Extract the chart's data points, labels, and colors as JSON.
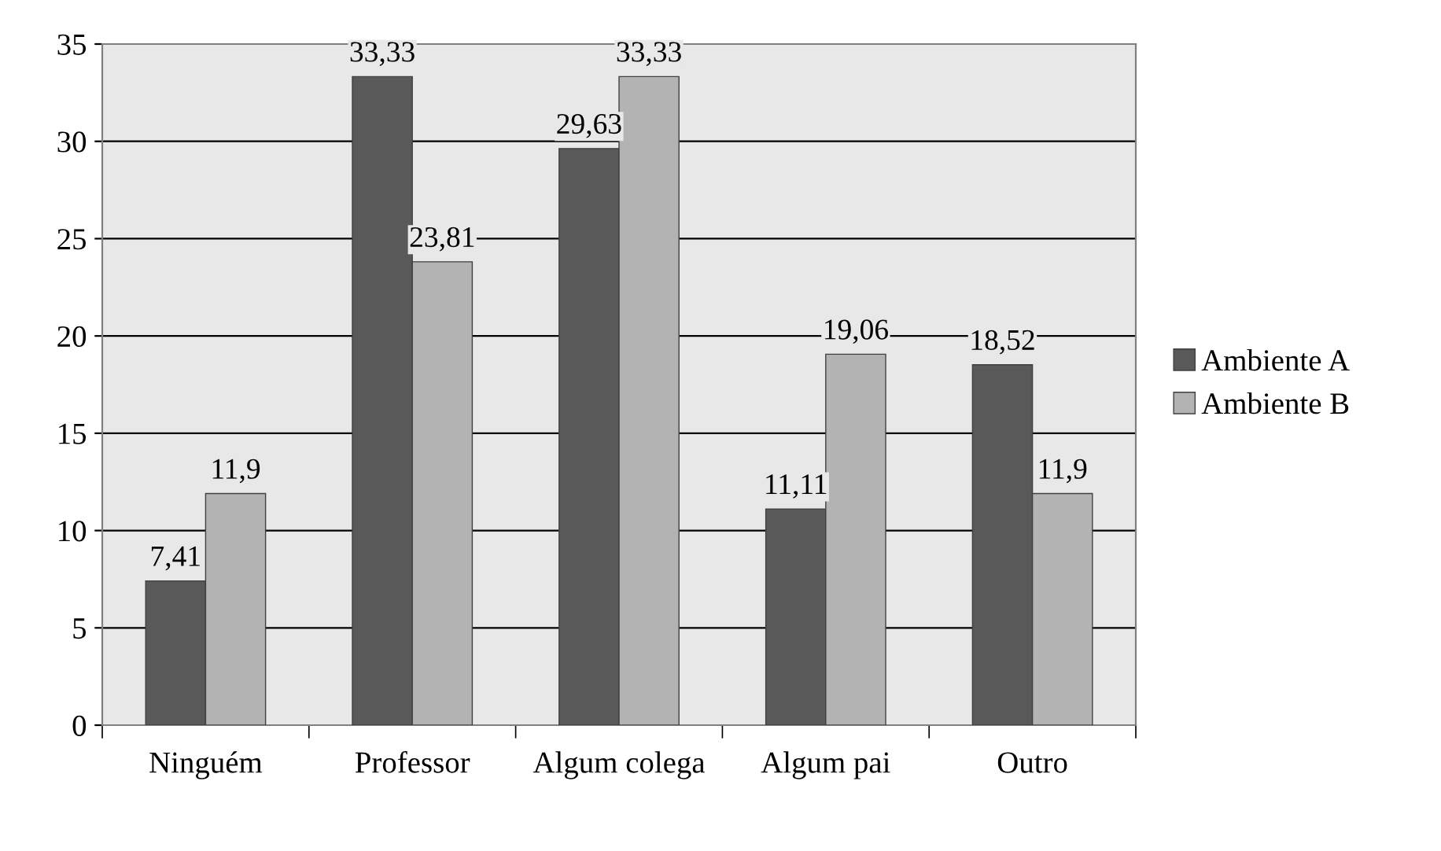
{
  "chart_data": {
    "type": "bar",
    "categories": [
      "Ninguém",
      "Professor",
      "Algum colega",
      "Algum pai",
      "Outro"
    ],
    "series": [
      {
        "name": "Ambiente A",
        "color": "#595959",
        "values": [
          7.41,
          33.33,
          29.63,
          11.11,
          18.52
        ],
        "value_labels": [
          "7,41",
          "33,33",
          "29,63",
          "11,11",
          "18,52"
        ]
      },
      {
        "name": "Ambiente B",
        "color": "#b3b3b3",
        "values": [
          11.9,
          23.81,
          33.33,
          19.06,
          11.9
        ],
        "value_labels": [
          "11,9",
          "23,81",
          "33,33",
          "19,06",
          "11,9"
        ]
      }
    ],
    "ylim": [
      0,
      35
    ],
    "yticks": [
      0,
      5,
      10,
      15,
      20,
      25,
      30,
      35
    ],
    "grid": "y",
    "legend": "right"
  }
}
